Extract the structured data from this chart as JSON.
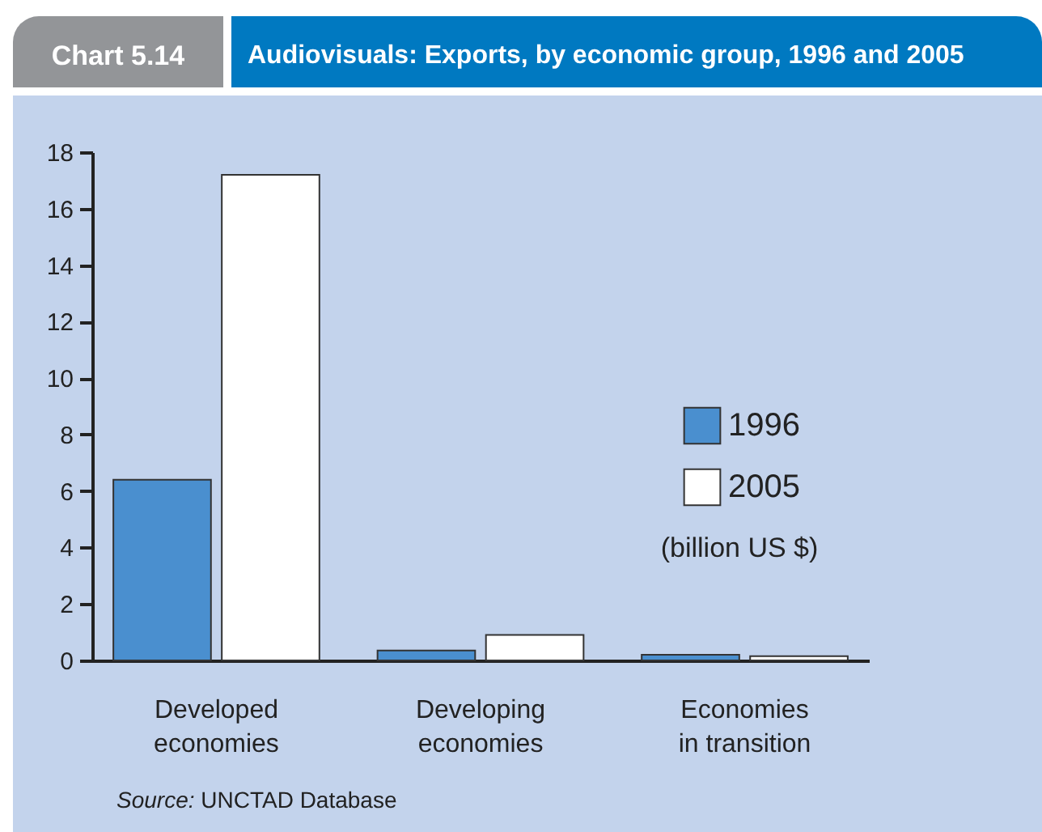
{
  "chart_data": {
    "type": "bar",
    "title": "Audiovisuals: Exports, by economic group, 1996 and 2005",
    "subtitle": "Chart 5.14",
    "ylabel": "(billion US $)",
    "categories": [
      "Developed economies",
      "Developing economies",
      "Economies in transition"
    ],
    "series": [
      {
        "name": "1996",
        "color": "#4a8fcf",
        "values": [
          6.4,
          0.35,
          0.2
        ]
      },
      {
        "name": "2005",
        "color": "#ffffff",
        "values": [
          17.2,
          0.9,
          0.15
        ]
      }
    ],
    "ylim": [
      0,
      18
    ],
    "yticks": [
      0,
      2,
      4,
      6,
      8,
      10,
      12,
      14,
      16,
      18
    ],
    "grid": false,
    "legend": "right",
    "annotations": [
      "Source: UNCTAD Database"
    ]
  }
}
